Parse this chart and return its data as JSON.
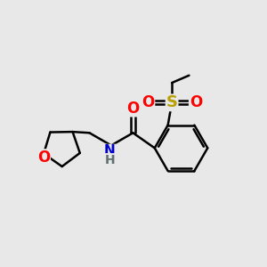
{
  "bg_color": "#e8e8e8",
  "bond_color": "#000000",
  "bond_width": 1.8,
  "atom_colors": {
    "O": "#ff0000",
    "N": "#0000cd",
    "S": "#b8a000",
    "C": "#000000",
    "H": "#000000"
  },
  "font_size": 11,
  "fig_width": 3.0,
  "fig_height": 3.0,
  "dpi": 100,
  "xlim": [
    0.0,
    10.0
  ],
  "ylim": [
    1.0,
    8.5
  ]
}
